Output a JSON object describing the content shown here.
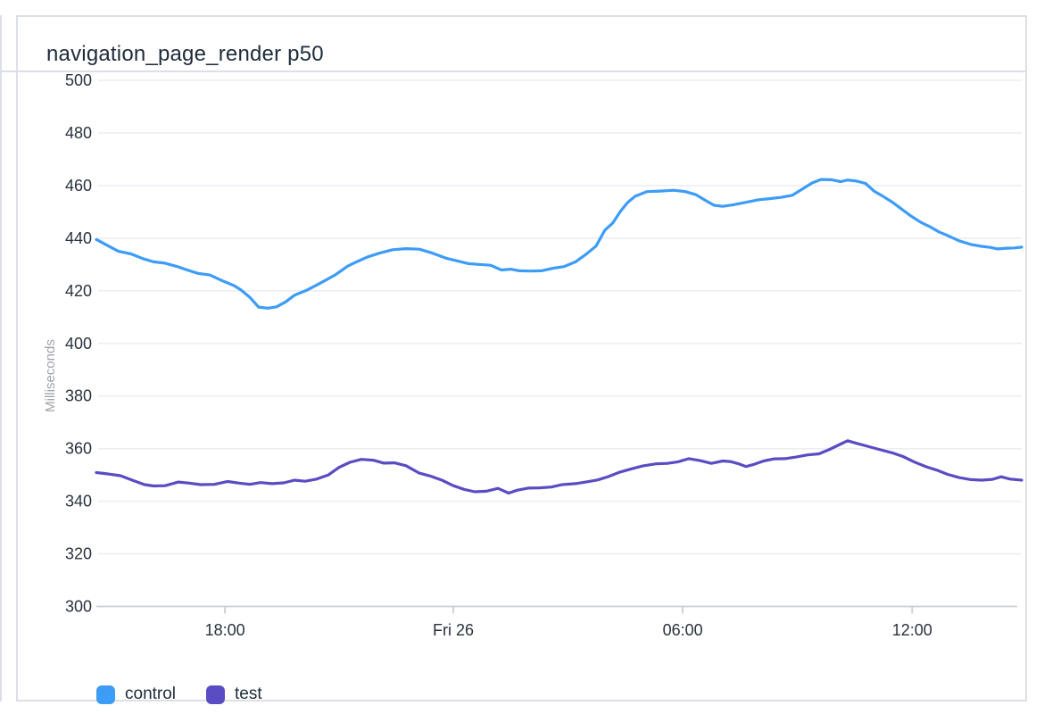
{
  "panel": {
    "title": "navigation_page_render p50"
  },
  "colors": {
    "control": "#3d9cf5",
    "test": "#5a4cc2",
    "title_text": "#1e2b3a",
    "tick_text": "#28323e",
    "axis_label_text": "#9fa2a8",
    "grid_line": "#eceef2",
    "axis_line": "#c9cdd6",
    "panel_border": "#dcdfe8",
    "panel_bg": "#ffffff"
  },
  "chart_data": {
    "type": "line",
    "title": "navigation_page_render p50",
    "xlabel": "",
    "ylabel": "Milliseconds",
    "ylim": [
      300,
      500
    ],
    "y_ticks": [
      300,
      320,
      340,
      360,
      380,
      400,
      420,
      440,
      460,
      480,
      500
    ],
    "x_unit": "hours_from_start",
    "x_range": [
      0,
      24.24
    ],
    "x_ticks": [
      {
        "t": 3.37,
        "label": "18:00"
      },
      {
        "t": 9.35,
        "label": "Fri 26"
      },
      {
        "t": 15.36,
        "label": "06:00"
      },
      {
        "t": 21.37,
        "label": "12:00"
      }
    ],
    "grid": true,
    "legend_position": "bottom-left",
    "series": [
      {
        "name": "control",
        "color": "#3d9cf5",
        "points": [
          [
            0,
            439.5
          ],
          [
            0.28,
            437.3
          ],
          [
            0.58,
            435
          ],
          [
            0.91,
            434
          ],
          [
            1.22,
            432.2
          ],
          [
            1.5,
            431
          ],
          [
            1.8,
            430.5
          ],
          [
            2.1,
            429.3
          ],
          [
            2.38,
            427.9
          ],
          [
            2.66,
            426.6
          ],
          [
            2.97,
            426
          ],
          [
            3.32,
            423.7
          ],
          [
            3.6,
            422
          ],
          [
            3.79,
            420.3
          ],
          [
            4.02,
            417.5
          ],
          [
            4.25,
            413.8
          ],
          [
            4.49,
            413.4
          ],
          [
            4.72,
            413.9
          ],
          [
            4.96,
            415.8
          ],
          [
            5.19,
            418.3
          ],
          [
            5.54,
            420.4
          ],
          [
            5.89,
            423.1
          ],
          [
            6.24,
            425.9
          ],
          [
            6.59,
            429.4
          ],
          [
            6.83,
            431.1
          ],
          [
            7.11,
            432.9
          ],
          [
            7.41,
            434.3
          ],
          [
            7.76,
            435.6
          ],
          [
            8.11,
            436
          ],
          [
            8.46,
            435.8
          ],
          [
            8.81,
            434.3
          ],
          [
            9.16,
            432.4
          ],
          [
            9.44,
            431.4
          ],
          [
            9.75,
            430.3
          ],
          [
            10.03,
            430
          ],
          [
            10.33,
            429.7
          ],
          [
            10.61,
            427.9
          ],
          [
            10.85,
            428.2
          ],
          [
            11.08,
            427.6
          ],
          [
            11.38,
            427.5
          ],
          [
            11.66,
            427.6
          ],
          [
            11.97,
            428.6
          ],
          [
            12.25,
            429.2
          ],
          [
            12.55,
            431
          ],
          [
            12.83,
            433.9
          ],
          [
            13.09,
            437
          ],
          [
            13.32,
            443
          ],
          [
            13.53,
            445.8
          ],
          [
            13.72,
            450
          ],
          [
            13.91,
            453.5
          ],
          [
            14.12,
            456
          ],
          [
            14.42,
            457.7
          ],
          [
            14.77,
            457.9
          ],
          [
            15.12,
            458.2
          ],
          [
            15.43,
            457.7
          ],
          [
            15.71,
            456.5
          ],
          [
            15.94,
            454.5
          ],
          [
            16.18,
            452.5
          ],
          [
            16.41,
            452.1
          ],
          [
            16.69,
            452.7
          ],
          [
            17,
            453.6
          ],
          [
            17.35,
            454.6
          ],
          [
            17.63,
            455
          ],
          [
            17.93,
            455.5
          ],
          [
            18.23,
            456.3
          ],
          [
            18.51,
            458.8
          ],
          [
            18.75,
            461
          ],
          [
            18.98,
            462.3
          ],
          [
            19.26,
            462.2
          ],
          [
            19.5,
            461.5
          ],
          [
            19.68,
            462.1
          ],
          [
            19.92,
            461.7
          ],
          [
            20.15,
            460.8
          ],
          [
            20.38,
            457.8
          ],
          [
            20.62,
            455.8
          ],
          [
            20.85,
            453.7
          ],
          [
            21.08,
            451.2
          ],
          [
            21.32,
            448.6
          ],
          [
            21.6,
            446
          ],
          [
            21.83,
            444.4
          ],
          [
            22.07,
            442.4
          ],
          [
            22.3,
            441
          ],
          [
            22.6,
            439
          ],
          [
            22.91,
            437.6
          ],
          [
            23.19,
            436.9
          ],
          [
            23.42,
            436.5
          ],
          [
            23.61,
            435.9
          ],
          [
            23.84,
            436.2
          ],
          [
            24.05,
            436.3
          ],
          [
            24.24,
            436.6
          ]
        ]
      },
      {
        "name": "test",
        "color": "#5a4cc2",
        "points": [
          [
            0,
            350.9
          ],
          [
            0.28,
            350.4
          ],
          [
            0.63,
            349.7
          ],
          [
            0.98,
            347.8
          ],
          [
            1.26,
            346.3
          ],
          [
            1.5,
            345.8
          ],
          [
            1.8,
            345.9
          ],
          [
            2.15,
            347.3
          ],
          [
            2.43,
            346.9
          ],
          [
            2.73,
            346.3
          ],
          [
            3.09,
            346.4
          ],
          [
            3.44,
            347.5
          ],
          [
            3.74,
            346.9
          ],
          [
            4.02,
            346.4
          ],
          [
            4.3,
            347.1
          ],
          [
            4.6,
            346.7
          ],
          [
            4.91,
            347
          ],
          [
            5.19,
            348
          ],
          [
            5.47,
            347.6
          ],
          [
            5.77,
            348.4
          ],
          [
            6.08,
            350
          ],
          [
            6.36,
            352.9
          ],
          [
            6.64,
            354.8
          ],
          [
            6.94,
            355.9
          ],
          [
            7.25,
            355.6
          ],
          [
            7.53,
            354.5
          ],
          [
            7.81,
            354.6
          ],
          [
            8.11,
            353.5
          ],
          [
            8.46,
            350.7
          ],
          [
            8.74,
            349.6
          ],
          [
            9.05,
            348
          ],
          [
            9.35,
            345.9
          ],
          [
            9.63,
            344.5
          ],
          [
            9.91,
            343.6
          ],
          [
            10.21,
            343.8
          ],
          [
            10.52,
            344.9
          ],
          [
            10.8,
            343.1
          ],
          [
            11.03,
            344.2
          ],
          [
            11.31,
            345
          ],
          [
            11.62,
            345.1
          ],
          [
            11.92,
            345.4
          ],
          [
            12.2,
            346.3
          ],
          [
            12.55,
            346.7
          ],
          [
            12.86,
            347.4
          ],
          [
            13.14,
            348.1
          ],
          [
            13.42,
            349.4
          ],
          [
            13.72,
            351.1
          ],
          [
            14.02,
            352.3
          ],
          [
            14.31,
            353.4
          ],
          [
            14.66,
            354.2
          ],
          [
            14.96,
            354.4
          ],
          [
            15.24,
            355
          ],
          [
            15.52,
            356.2
          ],
          [
            15.83,
            355.4
          ],
          [
            16.11,
            354.4
          ],
          [
            16.41,
            355.3
          ],
          [
            16.6,
            355.1
          ],
          [
            16.83,
            354.2
          ],
          [
            17.02,
            353.2
          ],
          [
            17.23,
            354
          ],
          [
            17.48,
            355.3
          ],
          [
            17.76,
            356.1
          ],
          [
            18.04,
            356.2
          ],
          [
            18.33,
            356.8
          ],
          [
            18.63,
            357.6
          ],
          [
            18.93,
            358
          ],
          [
            19.21,
            359.7
          ],
          [
            19.45,
            361.4
          ],
          [
            19.68,
            363
          ],
          [
            19.92,
            362
          ],
          [
            20.2,
            360.9
          ],
          [
            20.5,
            359.7
          ],
          [
            20.85,
            358.4
          ],
          [
            21.13,
            357
          ],
          [
            21.43,
            354.9
          ],
          [
            21.74,
            353.1
          ],
          [
            22.02,
            351.8
          ],
          [
            22.3,
            350.2
          ],
          [
            22.6,
            349
          ],
          [
            22.91,
            348.2
          ],
          [
            23.19,
            348
          ],
          [
            23.47,
            348.3
          ],
          [
            23.7,
            349.3
          ],
          [
            23.94,
            348.4
          ],
          [
            24.24,
            348
          ]
        ]
      }
    ]
  }
}
